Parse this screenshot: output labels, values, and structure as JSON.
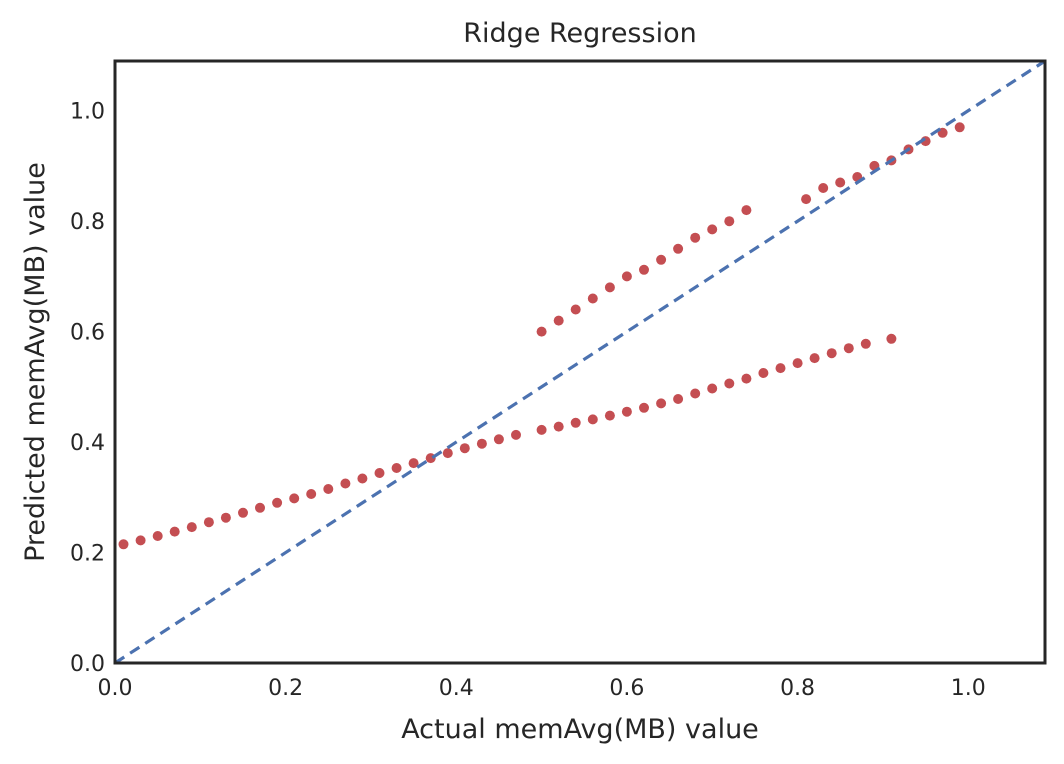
{
  "chart_data": {
    "type": "scatter",
    "title": "Ridge Regression",
    "xlabel": "Actual memAvg(MB) value",
    "ylabel": "Predicted memAvg(MB) value",
    "xlim": [
      0.0,
      1.09
    ],
    "ylim": [
      0.0,
      1.09
    ],
    "xticks": [
      0.0,
      0.2,
      0.4,
      0.6,
      0.8,
      1.0
    ],
    "yticks": [
      0.0,
      0.2,
      0.4,
      0.6,
      0.8,
      1.0
    ],
    "xtick_labels": [
      "0.0",
      "0.2",
      "0.4",
      "0.6",
      "0.8",
      "1.0"
    ],
    "ytick_labels": [
      "0.0",
      "0.2",
      "0.4",
      "0.6",
      "0.8",
      "1.0"
    ],
    "grid": false,
    "legend": false,
    "colors": {
      "points": "#c44e52",
      "reference_line": "#4c72b0",
      "frame": "#262626"
    },
    "reference_line": {
      "style": "dashed",
      "from": [
        0.0,
        0.0
      ],
      "to": [
        1.09,
        1.09
      ]
    },
    "series": [
      {
        "x": [
          0.01,
          0.03,
          0.05,
          0.07,
          0.09,
          0.11,
          0.13,
          0.15,
          0.17,
          0.19,
          0.21,
          0.23,
          0.25,
          0.27,
          0.29,
          0.31,
          0.33,
          0.35,
          0.37,
          0.39,
          0.41,
          0.43,
          0.45,
          0.47,
          0.5,
          0.52,
          0.54,
          0.56,
          0.58,
          0.6,
          0.62,
          0.64,
          0.66,
          0.68,
          0.7,
          0.72,
          0.74,
          0.76,
          0.78,
          0.8,
          0.82,
          0.84,
          0.86,
          0.88,
          0.91,
          0.5,
          0.52,
          0.54,
          0.56,
          0.58,
          0.6,
          0.62,
          0.64,
          0.66,
          0.68,
          0.7,
          0.72,
          0.74,
          0.81,
          0.83,
          0.85,
          0.87,
          0.89,
          0.91,
          0.93,
          0.95,
          0.97,
          0.99
        ],
        "y": [
          0.215,
          0.222,
          0.23,
          0.238,
          0.246,
          0.255,
          0.263,
          0.272,
          0.281,
          0.29,
          0.298,
          0.306,
          0.315,
          0.325,
          0.334,
          0.344,
          0.353,
          0.362,
          0.371,
          0.38,
          0.389,
          0.397,
          0.405,
          0.413,
          0.422,
          0.428,
          0.435,
          0.441,
          0.448,
          0.455,
          0.462,
          0.47,
          0.478,
          0.488,
          0.497,
          0.506,
          0.515,
          0.525,
          0.534,
          0.543,
          0.552,
          0.561,
          0.57,
          0.578,
          0.587,
          0.6,
          0.62,
          0.64,
          0.66,
          0.68,
          0.7,
          0.712,
          0.73,
          0.75,
          0.77,
          0.785,
          0.8,
          0.82,
          0.84,
          0.86,
          0.87,
          0.88,
          0.9,
          0.91,
          0.93,
          0.945,
          0.96,
          0.97
        ]
      }
    ]
  }
}
